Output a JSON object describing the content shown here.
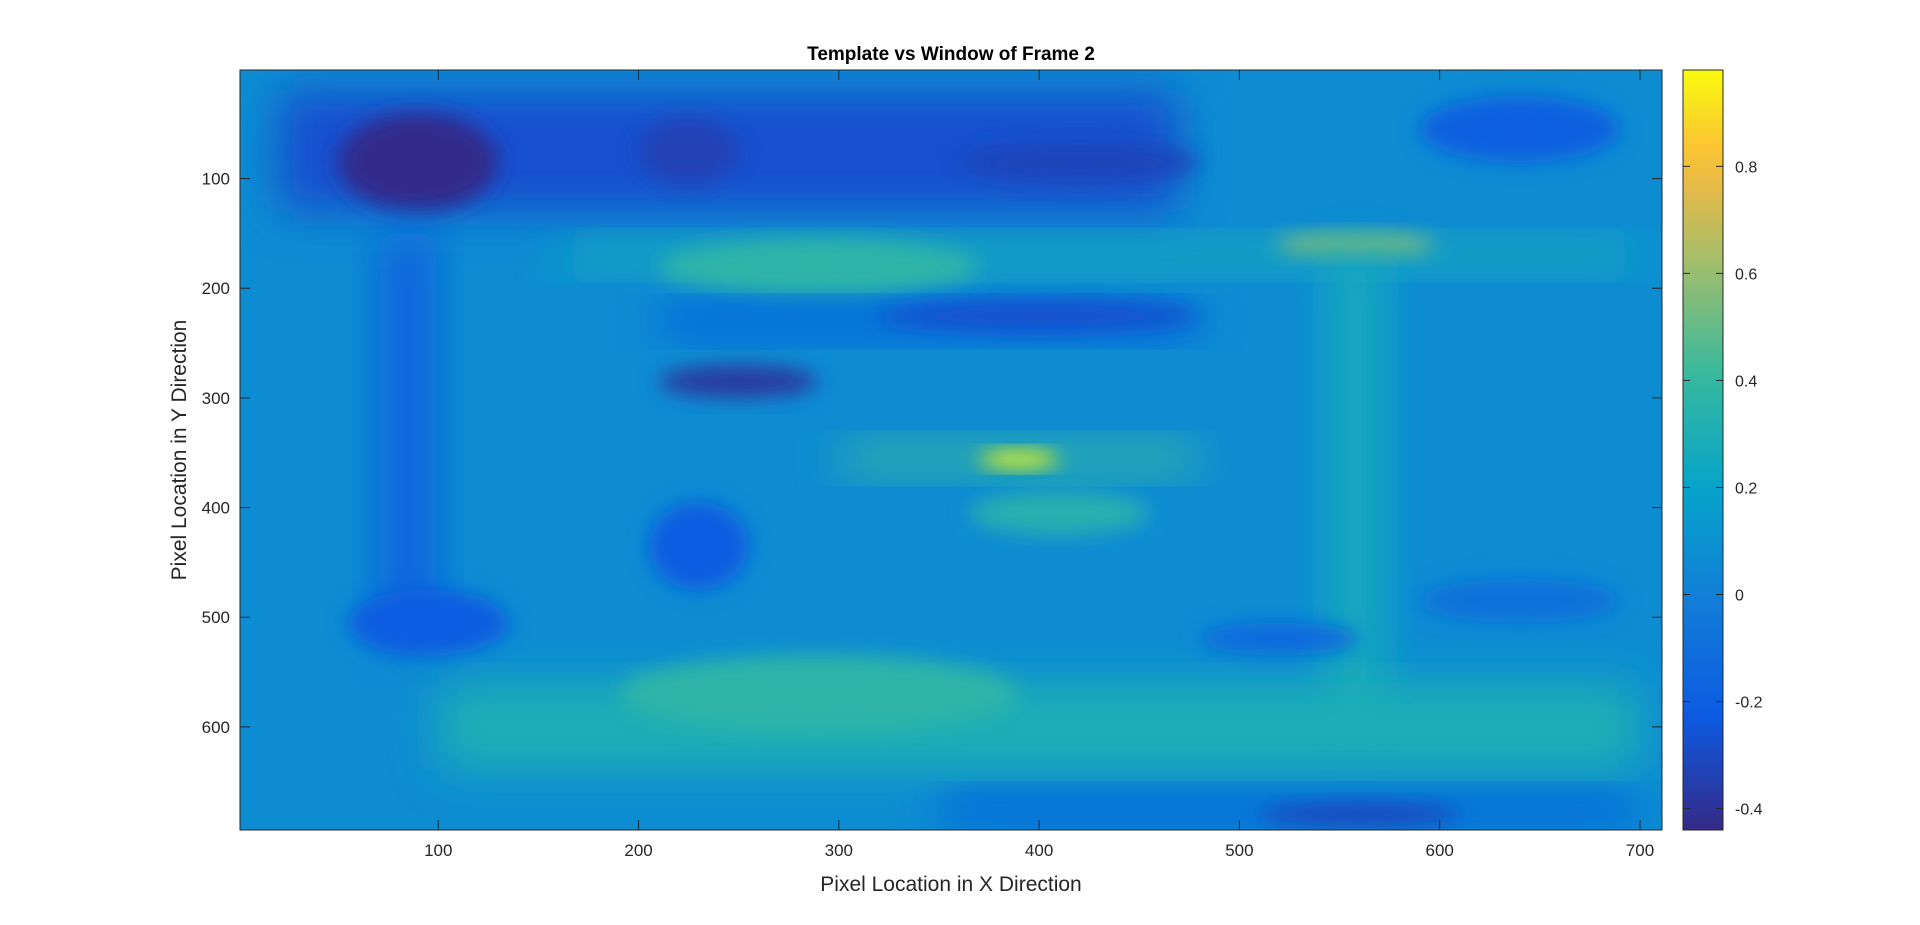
{
  "chart_data": {
    "type": "heatmap",
    "title": "Template vs Window of Frame 2",
    "xlabel": "Pixel Location in X Direction",
    "ylabel": "Pixel Location in Y Direction",
    "xlim": [
      1,
      711
    ],
    "ylim": [
      1,
      694
    ],
    "y_reversed": true,
    "colormap": "parula",
    "clim": [
      -0.44,
      0.98
    ],
    "grid": false,
    "x_ticks": [
      100,
      200,
      300,
      400,
      500,
      600,
      700
    ],
    "x_tick_labels": [
      "100",
      "200",
      "300",
      "400",
      "500",
      "600",
      "700"
    ],
    "y_ticks": [
      100,
      200,
      300,
      400,
      500,
      600
    ],
    "y_tick_labels": [
      "100",
      "200",
      "300",
      "400",
      "500",
      "600"
    ],
    "colorbar_ticks": [
      -0.4,
      -0.2,
      0,
      0.2,
      0.4,
      0.6,
      0.8
    ],
    "colorbar_tick_labels": [
      "-0.4",
      "-0.2",
      "0",
      "0.2",
      "0.4",
      "0.6",
      "0.8"
    ],
    "background_value": 0.07,
    "features": [
      {
        "shape": "rect",
        "x": [
          20,
          470
        ],
        "y": [
          20,
          130
        ],
        "value": -0.27
      },
      {
        "shape": "blob",
        "x": 90,
        "y": 85,
        "rx": 40,
        "ry": 45,
        "value": -0.43
      },
      {
        "shape": "blob",
        "x": 225,
        "y": 75,
        "rx": 25,
        "ry": 30,
        "value": -0.33
      },
      {
        "shape": "blob",
        "x": 420,
        "y": 85,
        "rx": 60,
        "ry": 18,
        "value": -0.32
      },
      {
        "shape": "blob",
        "x": 640,
        "y": 55,
        "rx": 50,
        "ry": 30,
        "value": -0.2
      },
      {
        "shape": "rect",
        "x": 85,
        "y": [
          150,
          520
        ],
        "value": -0.18
      },
      {
        "shape": "blob",
        "x": 95,
        "y": 505,
        "rx": 40,
        "ry": 30,
        "value": -0.22
      },
      {
        "shape": "rect",
        "x": [
          160,
          700
        ],
        "y": 170,
        "value": 0.27
      },
      {
        "shape": "blob",
        "x": 290,
        "y": 180,
        "rx": 80,
        "ry": 25,
        "value": 0.37
      },
      {
        "shape": "blob",
        "x": 558,
        "y": 160,
        "rx": 40,
        "ry": 10,
        "value": 0.55
      },
      {
        "shape": "rect",
        "x": 558,
        "y": [
          170,
          600
        ],
        "value": 0.27
      },
      {
        "shape": "rect",
        "x": [
          210,
          480
        ],
        "y": 230,
        "value": -0.22
      },
      {
        "shape": "blob",
        "x": 400,
        "y": 225,
        "rx": 80,
        "ry": 14,
        "value": -0.27
      },
      {
        "shape": "blob",
        "x": 250,
        "y": 285,
        "rx": 40,
        "ry": 15,
        "value": -0.38
      },
      {
        "shape": "blob",
        "x": 230,
        "y": 435,
        "rx": 25,
        "ry": 40,
        "value": -0.22
      },
      {
        "shape": "rect",
        "x": [
          300,
          480
        ],
        "y": 355,
        "value": 0.4
      },
      {
        "shape": "blob",
        "x": 390,
        "y": 356,
        "rx": 20,
        "ry": 7,
        "value": 0.98
      },
      {
        "shape": "blob",
        "x": 410,
        "y": 405,
        "rx": 45,
        "ry": 20,
        "value": 0.33
      },
      {
        "shape": "blob",
        "x": 520,
        "y": 520,
        "rx": 40,
        "ry": 15,
        "value": -0.15
      },
      {
        "shape": "blob",
        "x": 640,
        "y": 485,
        "rx": 50,
        "ry": 20,
        "value": -0.1
      },
      {
        "shape": "rect",
        "x": [
          100,
          700
        ],
        "y": [
          560,
          640
        ],
        "value": 0.3
      },
      {
        "shape": "blob",
        "x": 290,
        "y": 570,
        "rx": 100,
        "ry": 35,
        "value": 0.37
      },
      {
        "shape": "rect",
        "x": [
          350,
          700
        ],
        "y": 675,
        "value": -0.2
      },
      {
        "shape": "blob",
        "x": 560,
        "y": 680,
        "rx": 50,
        "ry": 10,
        "value": -0.32
      }
    ]
  }
}
